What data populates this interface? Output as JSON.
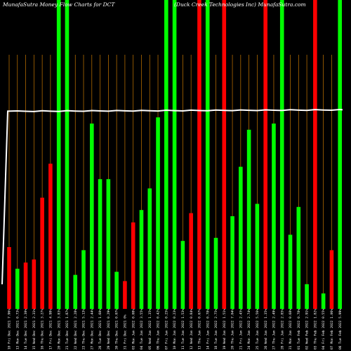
{
  "chart_data": {
    "type": "bar",
    "title_left": "MunafaSutra  Money Flow  Charts for DCT",
    "title_right": "(Duck Creek  Technologies Inc) MunafaSutra.com",
    "categories": [
      "10 Fri Dec 2021",
      "13 Mon Dec 2021",
      "14 Tue Dec 2021",
      "15 Wed Dec 2021",
      "16 Thu Dec 2021",
      "17 Fri Dec 2021",
      "20 Mon Dec 2021",
      "21 Tue Dec 2021",
      "22 Wed Dec 2021",
      "23 Thu Dec 2021",
      "27 Mon Dec 2021",
      "28 Tue Dec 2021",
      "29 Wed Dec 2021",
      "30 Thu Dec 2021",
      "31 Fri Dec 2021",
      "03 Mon Jan 2022",
      "04 Tue Jan 2022",
      "05 Wed Jan 2022",
      "06 Thu Jan 2022",
      "07 Fri Jan 2022",
      "10 Mon Jan 2022",
      "11 Tue Jan 2022",
      "12 Wed Jan 2022",
      "13 Thu Jan 2022",
      "14 Fri Jan 2022",
      "18 Tue Jan 2022",
      "19 Wed Jan 2022",
      "20 Thu Jan 2022",
      "21 Fri Jan 2022",
      "24 Mon Jan 2022",
      "25 Tue Jan 2022",
      "26 Wed Jan 2022",
      "27 Thu Jan 2022",
      "28 Fri Jan 2022",
      "31 Mon Jan 2022",
      "01 Tue Feb 2022",
      "02 Wed Feb 2022",
      "03 Thu Feb 2022",
      "04 Fri Feb 2022",
      "07 Mon Feb 2022",
      "08 Tue Feb 2022"
    ],
    "pct_labels": [
      "7.96%",
      "0.73%",
      "2.30%",
      "2.31%",
      "3.27%",
      "4.98%",
      "3.83%",
      "1.87%",
      "2.28%",
      "5.13%",
      "2.44%",
      "1.60%",
      "0.29%",
      "0.07%",
      "0%",
      "0.08%",
      "3.55%",
      "1.35%",
      "0.42%",
      "0.25%",
      "0.23%",
      "1.53%",
      "0.84%",
      "0.67%",
      "0.78%",
      "2.75%",
      "1.51%",
      "7.04%",
      "2.45%",
      "2.74%",
      "5.56%",
      "1.35%",
      "2.49%",
      "2.85%",
      "0.68%",
      "0.78%",
      "2.91%",
      "1.82%",
      "0.55%",
      "1.06%",
      "5.99%"
    ],
    "colors": [
      "red",
      "green",
      "red",
      "red",
      "red",
      "red",
      "green",
      "green",
      "green",
      "green",
      "green",
      "green",
      "green",
      "green",
      "red",
      "red",
      "green",
      "green",
      "green",
      "green",
      "green",
      "green",
      "red",
      "red",
      "green",
      "green",
      "red",
      "green",
      "green",
      "green",
      "green",
      "red",
      "green",
      "green",
      "green",
      "green",
      "green",
      "red",
      "green",
      "red",
      "green"
    ],
    "values": [
      20,
      13,
      15,
      16,
      36,
      47,
      100,
      100,
      11,
      19,
      60,
      42,
      42,
      12,
      9,
      28,
      32,
      39,
      62,
      100,
      100,
      22,
      31,
      100,
      100,
      23,
      100,
      30,
      46,
      58,
      34,
      100,
      60,
      100,
      24,
      33,
      8,
      100,
      5,
      19,
      100
    ],
    "line_level": 64,
    "ylim": [
      0,
      100
    ],
    "color_key": {
      "red": "#ff0000",
      "green": "#00ff00",
      "grid": "#c87800",
      "line": "#ffffff"
    }
  }
}
